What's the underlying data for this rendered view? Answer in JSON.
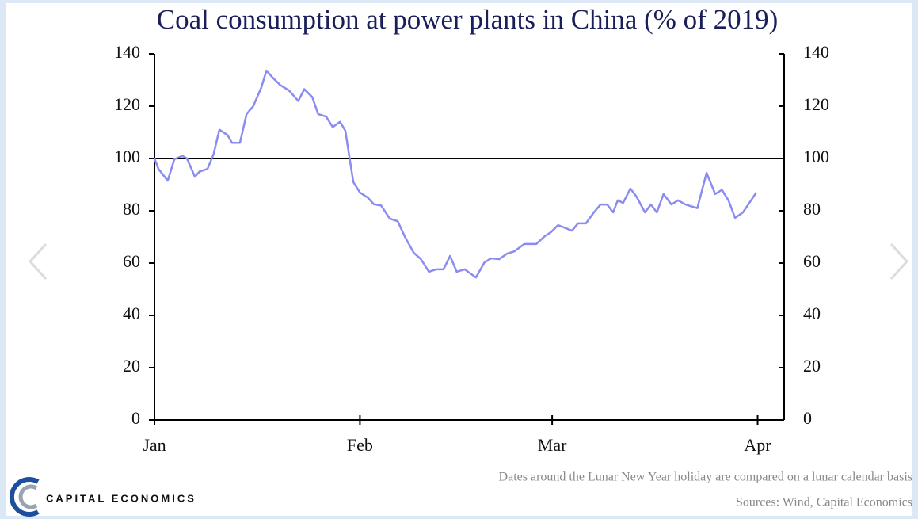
{
  "chart_data": {
    "type": "line",
    "title": "Coal consumption at power plants in China (% of 2019)",
    "x": [
      0,
      0.6,
      2,
      3,
      4.2,
      4.9,
      6.1,
      6.8,
      8,
      8.9,
      9.8,
      11,
      11.7,
      12.9,
      13.9,
      14.9,
      16.1,
      16.9,
      17.8,
      19,
      20.3,
      21.7,
      22.6,
      23.8,
      24.7,
      25.9,
      26.9,
      28,
      28.8,
      30,
      31,
      32.2,
      33.1,
      34.2,
      35.5,
      36.7,
      37.8,
      39.1,
      40.2,
      41.4,
      42.5,
      43.6,
      44.6,
      45.6,
      46.8,
      48.5,
      49.8,
      50.8,
      52,
      53.2,
      54.3,
      55.8,
      57.6,
      58.9,
      59.8,
      60.9,
      62.1,
      63,
      63.9,
      65.1,
      66.3,
      67.3,
      68.3,
      69.2,
      69.9,
      70.7,
      71.8,
      72.7,
      74,
      74.9,
      75.8,
      76.8,
      78,
      79,
      80.1,
      81.9,
      83.3,
      84.6,
      85.6,
      86.6,
      87.6,
      88.8,
      90.8
    ],
    "series": [
      {
        "color": "#8a8cf0",
        "values": [
          100,
          96,
          91.5,
          99.7,
          101,
          100,
          93,
          95,
          96,
          101.5,
          111,
          109,
          106,
          106,
          117,
          120,
          127,
          133.6,
          131,
          128,
          126,
          122,
          126.5,
          123.5,
          117,
          116,
          112,
          114,
          110.6,
          91,
          87,
          85,
          82.5,
          82,
          77,
          76,
          70,
          64,
          61.5,
          56.7,
          57.6,
          57.6,
          62.7,
          56.7,
          57.6,
          54.5,
          60.3,
          61.8,
          61.5,
          63.6,
          64.5,
          67.3,
          67.3,
          70.3,
          71.8,
          74.5,
          73.3,
          72.4,
          75.2,
          75.2,
          79.4,
          82.4,
          82.4,
          79.4,
          84,
          83,
          88.5,
          85.5,
          79.4,
          82.4,
          79.4,
          86.4,
          82.4,
          84,
          82.4,
          81,
          94.5,
          86.4,
          88,
          84,
          77.3,
          79.4,
          87
        ]
      }
    ],
    "xlim": [
      0,
      95
    ],
    "xticks": [
      {
        "value": 0,
        "label": "Jan"
      },
      {
        "value": 31,
        "label": "Feb"
      },
      {
        "value": 60,
        "label": "Mar"
      },
      {
        "value": 91,
        "label": "Apr"
      }
    ],
    "ylim": [
      0,
      140
    ],
    "yticks": [
      0,
      20,
      40,
      60,
      80,
      100,
      120,
      140
    ],
    "y2lim": [
      0,
      140
    ],
    "y2ticks": [
      0,
      20,
      40,
      60,
      80,
      100,
      120,
      140
    ],
    "hline": 100,
    "note": "Dates around the Lunar New Year holiday are compared on a lunar calendar basis",
    "source": "Sources: Wind, Capital Economics",
    "logo": "CAPITAL ECONOMICS"
  }
}
